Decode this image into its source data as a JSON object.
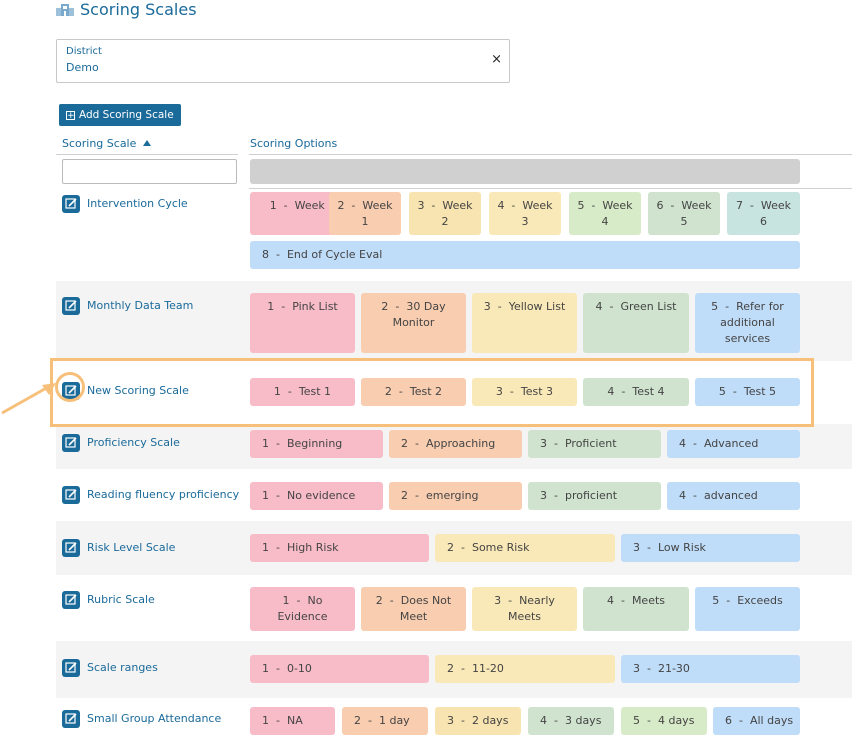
{
  "page_title": "Scoring Scales",
  "icon": "school-icon",
  "district": {
    "label": "District",
    "value": "Demo",
    "clear": "×"
  },
  "add_button": "Add Scoring Scale",
  "columns": {
    "scale": "Scoring Scale",
    "options": "Scoring Options"
  },
  "filter_placeholder": "",
  "colors": {
    "brand": "#1a6a9a",
    "highlight": "#f7c07a"
  },
  "rows": [
    {
      "name": "Intervention Cycle",
      "options": [
        {
          "num": "1",
          "text": "Week 0"
        },
        {
          "num": "2",
          "text": "Week 1"
        },
        {
          "num": "3",
          "text": "Week 2"
        },
        {
          "num": "4",
          "text": "Week 3"
        },
        {
          "num": "5",
          "text": "Week 4"
        },
        {
          "num": "6",
          "text": "Week 5"
        },
        {
          "num": "7",
          "text": "Week 6"
        },
        {
          "num": "8",
          "text": "End of Cycle Eval"
        }
      ]
    },
    {
      "name": "Monthly Data Team",
      "options": [
        {
          "num": "1",
          "text": "Pink List"
        },
        {
          "num": "2",
          "text": "30 Day Monitor"
        },
        {
          "num": "3",
          "text": "Yellow List"
        },
        {
          "num": "4",
          "text": "Green List"
        },
        {
          "num": "5",
          "text": "Refer for additional services"
        }
      ]
    },
    {
      "name": "New Scoring Scale",
      "options": [
        {
          "num": "1",
          "text": "Test 1"
        },
        {
          "num": "2",
          "text": "Test 2"
        },
        {
          "num": "3",
          "text": "Test 3"
        },
        {
          "num": "4",
          "text": "Test 4"
        },
        {
          "num": "5",
          "text": "Test 5"
        }
      ]
    },
    {
      "name": "Proficiency Scale",
      "options": [
        {
          "num": "1",
          "text": "Beginning"
        },
        {
          "num": "2",
          "text": "Approaching"
        },
        {
          "num": "3",
          "text": "Proficient"
        },
        {
          "num": "4",
          "text": "Advanced"
        }
      ]
    },
    {
      "name": "Reading fluency proficiency",
      "options": [
        {
          "num": "1",
          "text": "No evidence"
        },
        {
          "num": "2",
          "text": "emerging"
        },
        {
          "num": "3",
          "text": "proficient"
        },
        {
          "num": "4",
          "text": "advanced"
        }
      ]
    },
    {
      "name": "Risk Level Scale",
      "options": [
        {
          "num": "1",
          "text": "High Risk"
        },
        {
          "num": "2",
          "text": "Some Risk"
        },
        {
          "num": "3",
          "text": "Low Risk"
        }
      ]
    },
    {
      "name": "Rubric Scale",
      "options": [
        {
          "num": "1",
          "text": "No Evidence"
        },
        {
          "num": "2",
          "text": "Does Not Meet"
        },
        {
          "num": "3",
          "text": "Nearly Meets"
        },
        {
          "num": "4",
          "text": "Meets"
        },
        {
          "num": "5",
          "text": "Exceeds"
        }
      ]
    },
    {
      "name": "Scale ranges",
      "options": [
        {
          "num": "1",
          "text": "0-10"
        },
        {
          "num": "2",
          "text": "11-20"
        },
        {
          "num": "3",
          "text": "21-30"
        }
      ]
    },
    {
      "name": "Small Group Attendance",
      "options": [
        {
          "num": "1",
          "text": "NA"
        },
        {
          "num": "2",
          "text": "1 day"
        },
        {
          "num": "3",
          "text": "2 days"
        },
        {
          "num": "4",
          "text": "3 days"
        },
        {
          "num": "5",
          "text": "4 days"
        },
        {
          "num": "6",
          "text": "All days"
        }
      ]
    }
  ]
}
